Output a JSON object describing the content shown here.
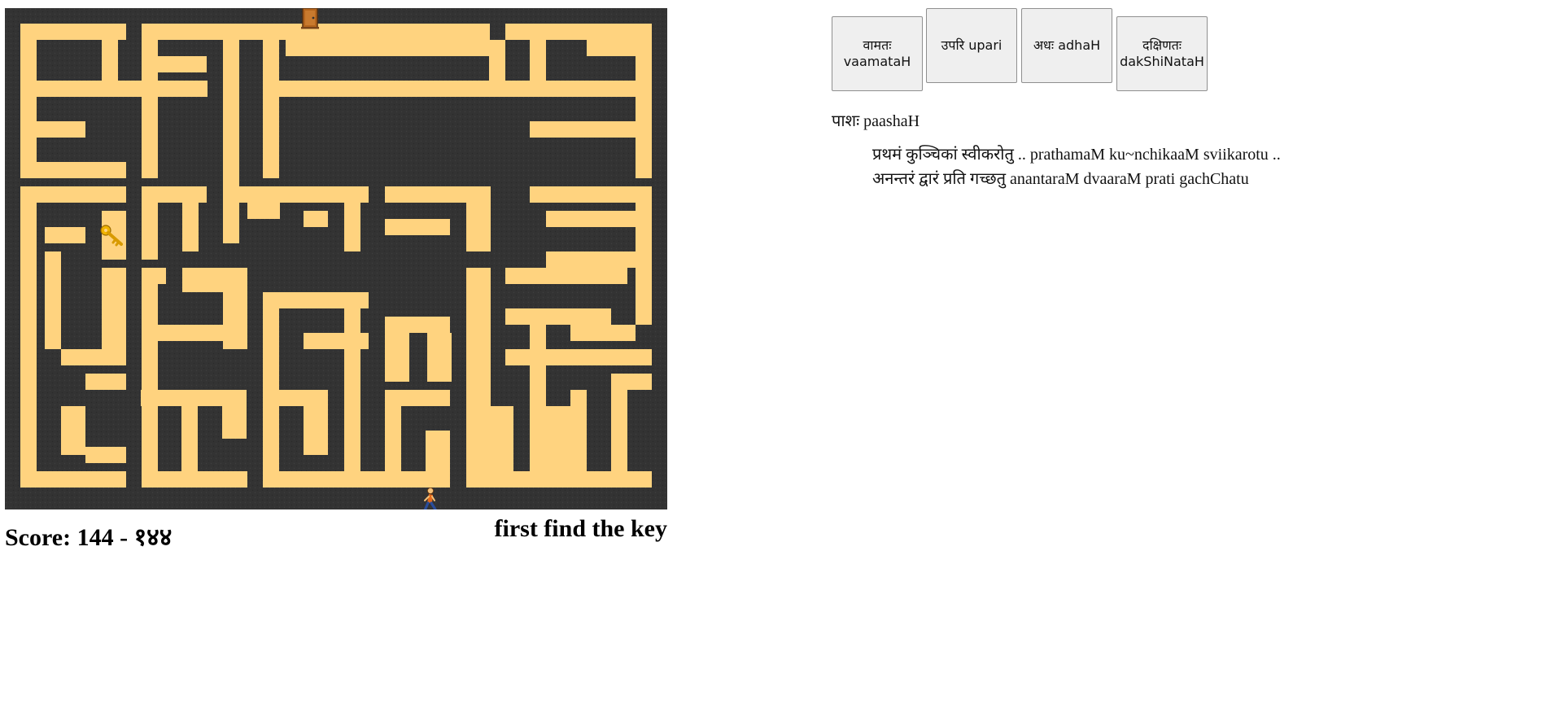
{
  "maze": {
    "wall_color": "#333333",
    "path_color": "#ffd37f",
    "icons": {
      "key": "key-icon",
      "door": "door-icon",
      "player": "walking-person-icon"
    }
  },
  "status": {
    "score_text": "Score: 144 - १४४",
    "hint_text": "first find the key"
  },
  "controls": {
    "left": {
      "dev": "वामतः",
      "latin": "vaamataH"
    },
    "up": {
      "dev": "उपरि",
      "latin": "upari"
    },
    "down": {
      "dev": "अधः",
      "latin": "adhaH"
    },
    "right": {
      "dev": "दक्षिणतः",
      "latin": "dakShiNataH"
    }
  },
  "instructions": {
    "title": "पाशः paashaH",
    "items": [
      "प्रथमं कुञ्चिकां स्वीकरोतु .. prathamaM ku~nchikaaM sviikarotu ..",
      "अनन्तरं द्वारं प्रति गच्छतु anantaraM dvaaraM prati gachChatu"
    ]
  }
}
